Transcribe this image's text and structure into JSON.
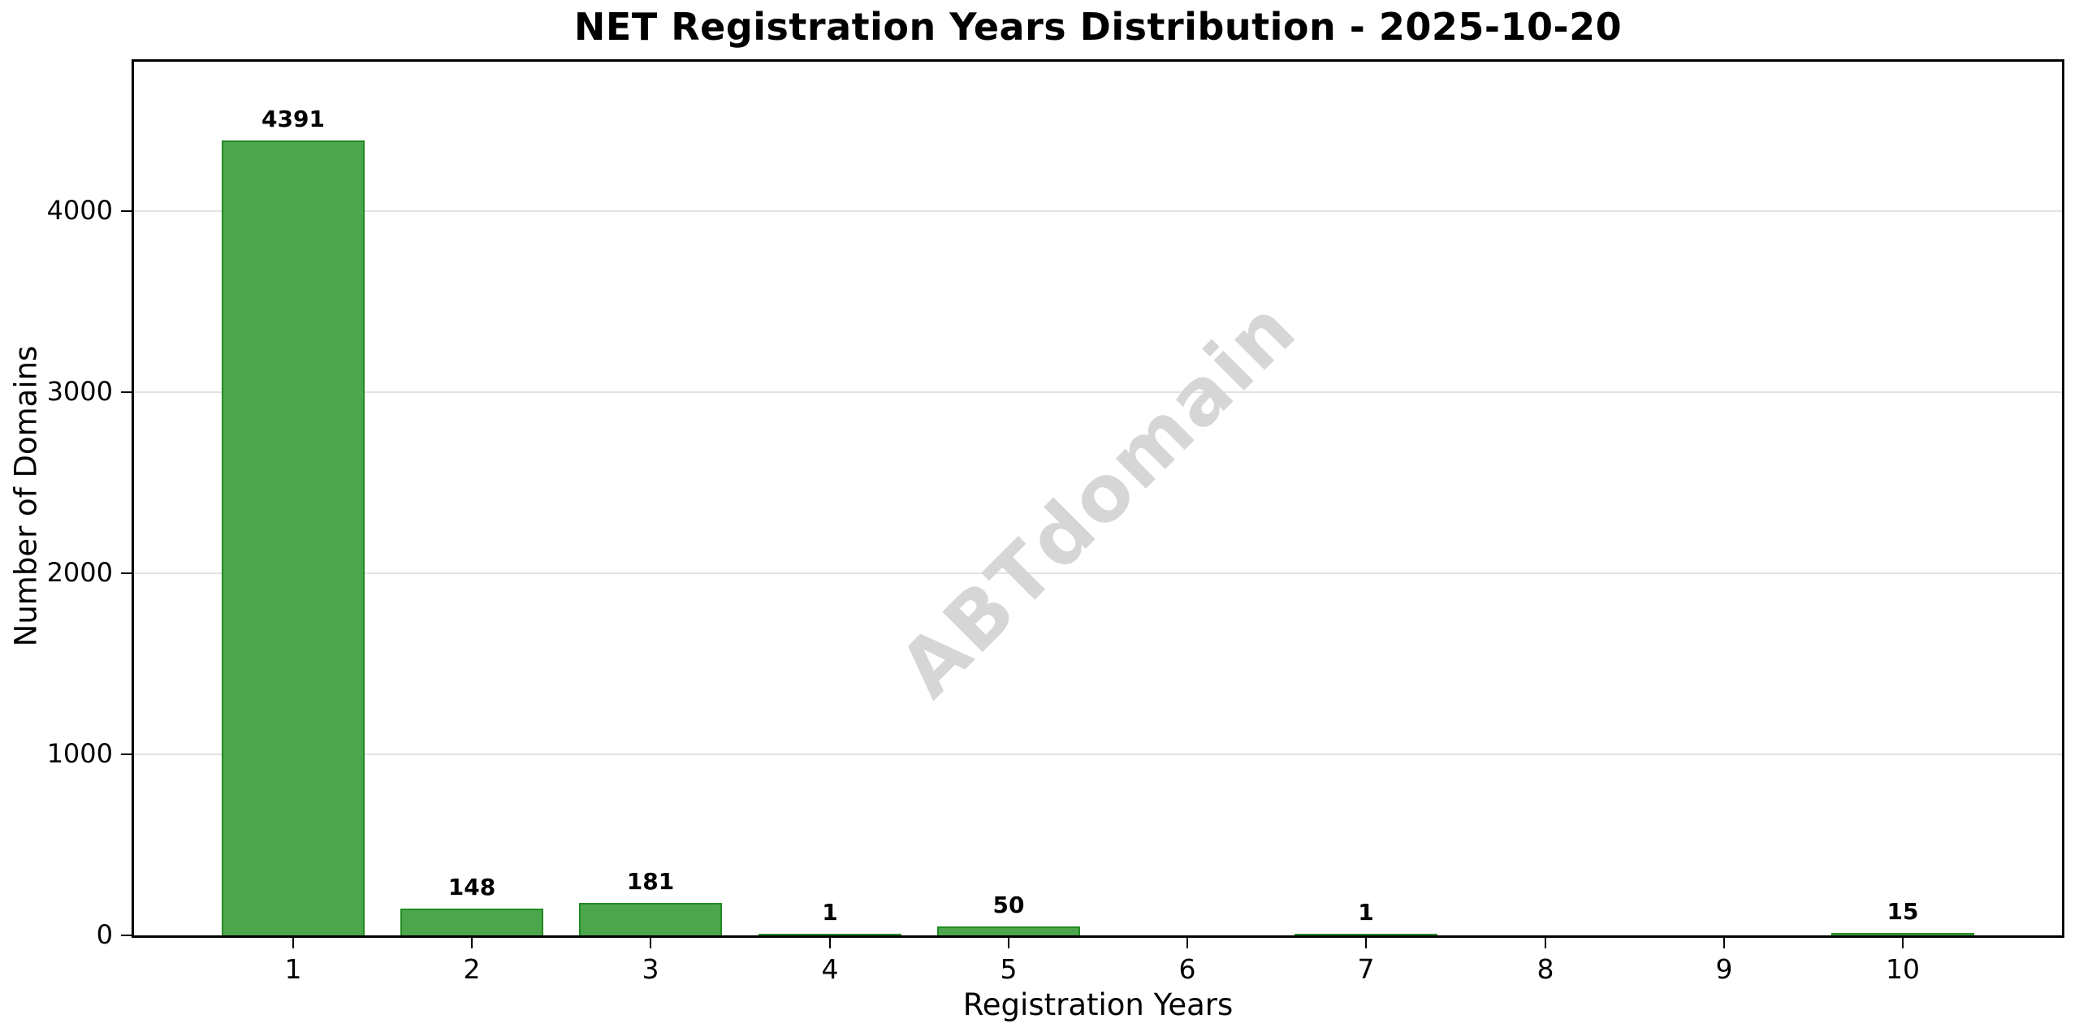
{
  "chart_data": {
    "type": "bar",
    "title": "NET Registration Years Distribution - 2025-10-20",
    "xlabel": "Registration Years",
    "ylabel": "Number of Domains",
    "categories": [
      1,
      2,
      3,
      4,
      5,
      6,
      7,
      8,
      9,
      10
    ],
    "values": [
      4391,
      148,
      181,
      1,
      50,
      0,
      1,
      0,
      0,
      15
    ],
    "bar_labels": [
      "4391",
      "148",
      "181",
      "1",
      "50",
      "",
      "1",
      "",
      "",
      "15"
    ],
    "yticks": [
      0,
      1000,
      2000,
      3000,
      4000
    ],
    "ytick_labels": [
      "0",
      "1000",
      "2000",
      "3000",
      "4000"
    ],
    "xtick_labels": [
      "1",
      "2",
      "3",
      "4",
      "5",
      "6",
      "7",
      "8",
      "9",
      "10"
    ],
    "xlim": [
      0.11,
      10.89
    ],
    "ylim": [
      0,
      4825
    ],
    "bar_width_units": 0.8,
    "grid": "horizontal-only",
    "legend": "none",
    "colors": {
      "bar_fill": "#4CA64C",
      "bar_edge": "#228B22",
      "grid": "#e2e2e2",
      "axis": "#000000",
      "text": "#000000",
      "watermark": "#d6d6d6"
    },
    "watermark": {
      "text": "ABTdomain",
      "rotation_deg": -45
    }
  }
}
